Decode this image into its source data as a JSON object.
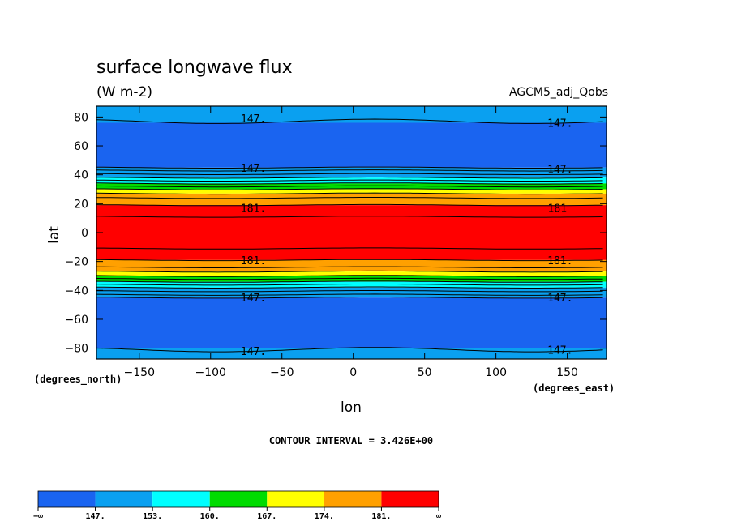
{
  "chart_data": {
    "type": "heatmap",
    "title": "surface longwave flux",
    "units": "(W m-2)",
    "experiment": "AGCM5_adj_Qobs",
    "xlabel": "lon",
    "ylabel": "lat",
    "x_units": "(degrees_east)",
    "y_units": "(degrees_north)",
    "xlim": [
      -180,
      177.5
    ],
    "ylim": [
      -87.5,
      87.5
    ],
    "x_ticks": [
      -150,
      -100,
      -50,
      0,
      50,
      100,
      150
    ],
    "x_tick_labels": [
      "−150",
      "−100",
      "−50",
      "0",
      "50",
      "100",
      "150"
    ],
    "y_ticks": [
      80,
      60,
      40,
      20,
      0,
      -20,
      -40,
      -60,
      -80
    ],
    "y_tick_labels": [
      "80",
      "60",
      "40",
      "20",
      "0",
      "−20",
      "−40",
      "−60",
      "−80"
    ],
    "contour_interval_text": "CONTOUR INTERVAL = 3.426E+00",
    "colorbar": {
      "colors": [
        "#1a64f0",
        "#0aa0f0",
        "#00ffff",
        "#00dc00",
        "#ffff00",
        "#ffa000",
        "#ff0000"
      ],
      "labels": [
        "−∞",
        "147.",
        "153.",
        "160.",
        "167.",
        "174.",
        "181.",
        "∞"
      ]
    },
    "bands": [
      {
        "lat_from": 76,
        "lat_to": 87.5,
        "color": "#0aa0f0"
      },
      {
        "lat_from": 45,
        "lat_to": 76,
        "color": "#1a64f0"
      },
      {
        "lat_from": 38,
        "lat_to": 45,
        "color": "#0aa0f0"
      },
      {
        "lat_from": 34,
        "lat_to": 38,
        "color": "#00ffff"
      },
      {
        "lat_from": 30,
        "lat_to": 34,
        "color": "#00dc00"
      },
      {
        "lat_from": 27,
        "lat_to": 30,
        "color": "#ffff00"
      },
      {
        "lat_from": 19,
        "lat_to": 27,
        "color": "#ffa000"
      },
      {
        "lat_from": -19,
        "lat_to": 19,
        "color": "#ff0000"
      },
      {
        "lat_from": -27,
        "lat_to": -19,
        "color": "#ffa000"
      },
      {
        "lat_from": -30,
        "lat_to": -27,
        "color": "#ffff00"
      },
      {
        "lat_from": -34,
        "lat_to": -30,
        "color": "#00dc00"
      },
      {
        "lat_from": -38,
        "lat_to": -34,
        "color": "#00ffff"
      },
      {
        "lat_from": -45,
        "lat_to": -38,
        "color": "#0aa0f0"
      },
      {
        "lat_from": -80,
        "lat_to": -45,
        "color": "#1a64f0"
      },
      {
        "lat_from": -87.5,
        "lat_to": -80,
        "color": "#0aa0f0"
      }
    ],
    "contour_lines_lat": [
      77,
      45,
      43,
      40.5,
      38,
      36,
      34,
      32,
      30,
      27,
      24,
      19,
      11,
      -11,
      -19,
      -24,
      -27,
      -30,
      -32,
      -34,
      -36,
      -38,
      -40.5,
      -43,
      -45,
      -81
    ],
    "contour_labels": [
      {
        "text": "147.",
        "lon": -70,
        "lat": 79
      },
      {
        "text": "147.",
        "lon": 145,
        "lat": 76
      },
      {
        "text": "147.",
        "lon": -70,
        "lat": 45
      },
      {
        "text": "147.",
        "lon": 145,
        "lat": 44
      },
      {
        "text": "181.",
        "lon": -70,
        "lat": 17
      },
      {
        "text": "181",
        "lon": 143,
        "lat": 17
      },
      {
        "text": "181.",
        "lon": -70,
        "lat": -19
      },
      {
        "text": "181.",
        "lon": 145,
        "lat": -19
      },
      {
        "text": "147.",
        "lon": -70,
        "lat": -45
      },
      {
        "text": "147.",
        "lon": 145,
        "lat": -45
      },
      {
        "text": "147.",
        "lon": -70,
        "lat": -82
      },
      {
        "text": "147.",
        "lon": 145,
        "lat": -81
      }
    ]
  }
}
